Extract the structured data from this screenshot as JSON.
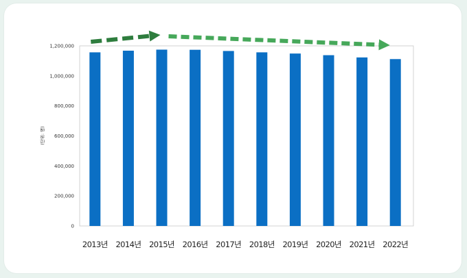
{
  "chart_data": {
    "type": "bar",
    "categories": [
      "2013년",
      "2014년",
      "2015년",
      "2016년",
      "2017년",
      "2018년",
      "2019년",
      "2020년",
      "2021년",
      "2022년"
    ],
    "values": [
      1157000,
      1168000,
      1175000,
      1174000,
      1166000,
      1157000,
      1149000,
      1138000,
      1123000,
      1112000
    ],
    "ylabel": "(단위: 명)",
    "ylim": [
      0,
      1200000
    ],
    "yticks": [
      0,
      200000,
      400000,
      600000,
      800000,
      1000000,
      1200000
    ],
    "ytick_labels": [
      "0",
      "200,000",
      "400,000",
      "600,000",
      "800,000",
      "1,000,000",
      "1,200,000"
    ],
    "bar_color": "#0b6fc4",
    "trend_arrows": [
      {
        "direction": "up",
        "from_category": "2013년",
        "to_category": "2015년",
        "color": "#2e7d3e"
      },
      {
        "direction": "down",
        "from_category": "2015년",
        "to_category": "2022년",
        "color": "#46a85a"
      }
    ],
    "grid": false
  }
}
